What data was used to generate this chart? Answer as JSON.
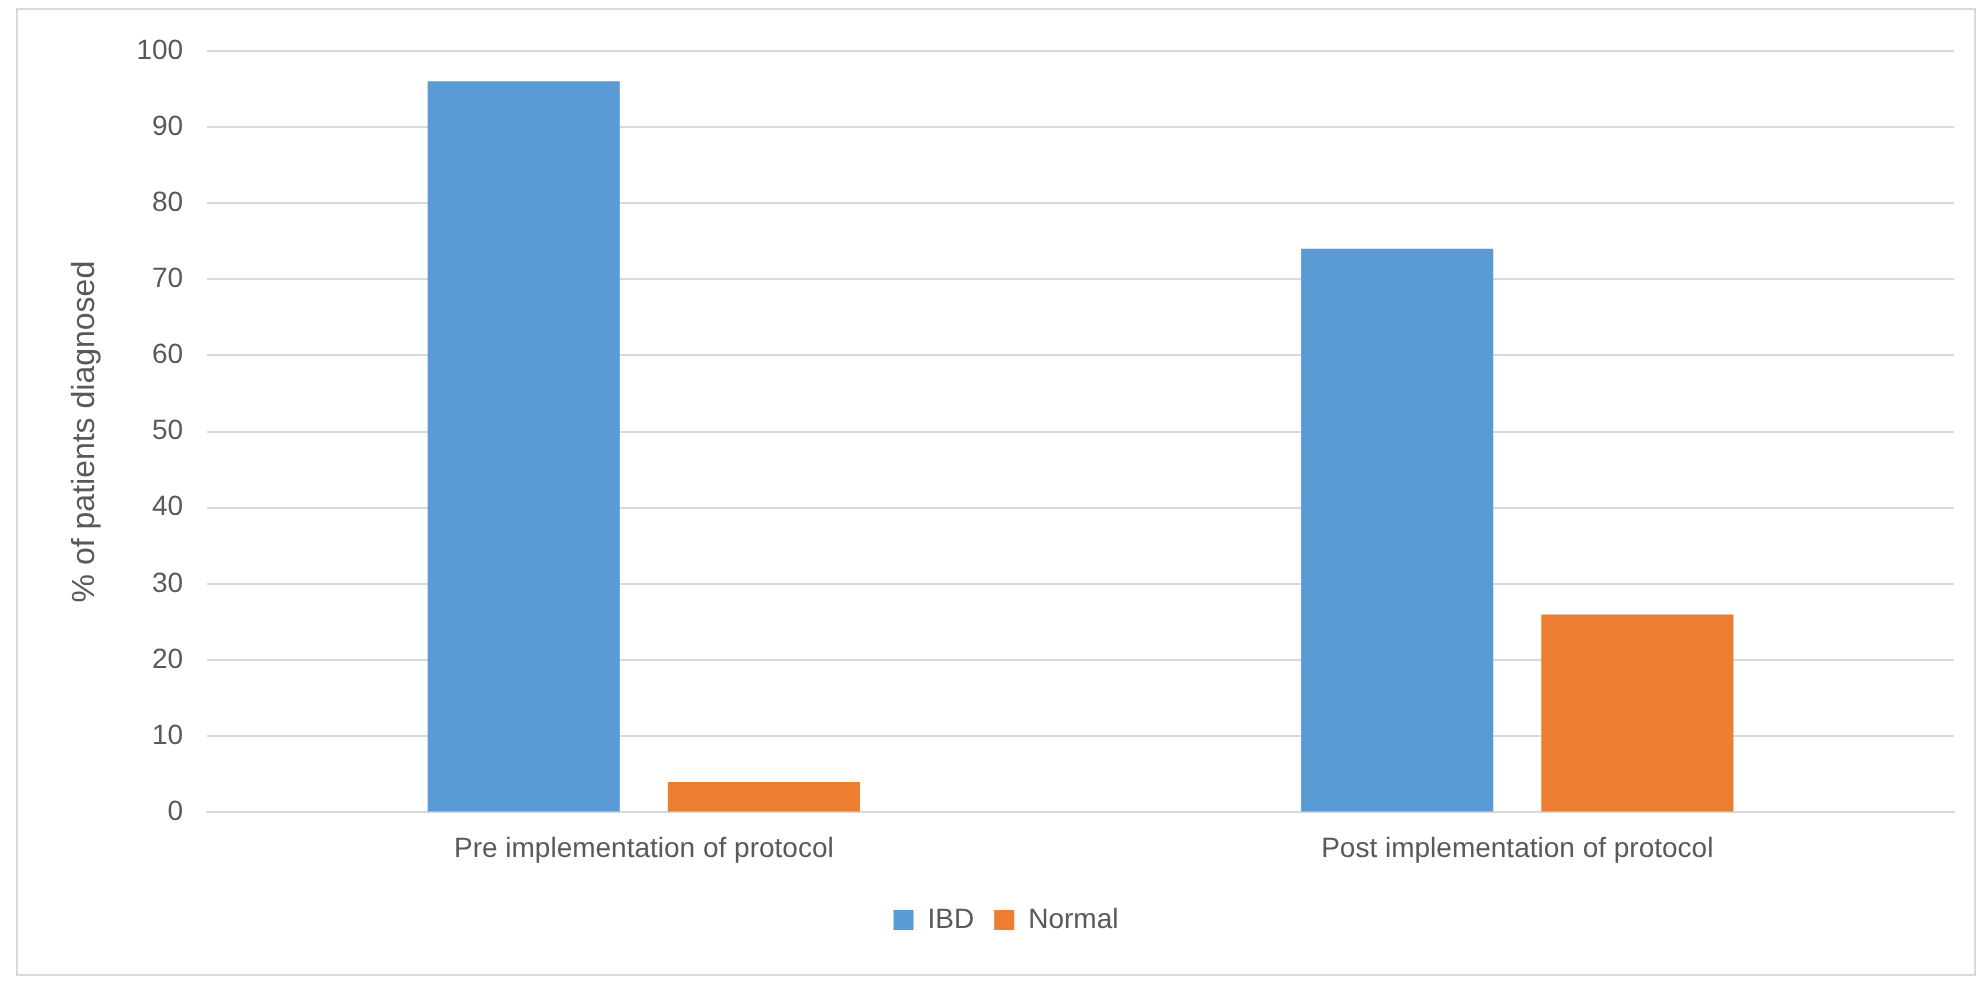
{
  "chart_data": {
    "type": "bar",
    "categories": [
      "Pre implementation of protocol",
      "Post implementation of protocol"
    ],
    "series": [
      {
        "name": "IBD",
        "color": "#5b9bd5",
        "values": [
          96,
          74
        ]
      },
      {
        "name": "Normal",
        "color": "#ed7d31",
        "values": [
          4,
          26
        ]
      }
    ],
    "ylabel": "% of patients diagnosed",
    "ylim": [
      0,
      100
    ],
    "yticks": [
      0,
      10,
      20,
      30,
      40,
      50,
      60,
      70,
      80,
      90,
      100
    ],
    "grid": "y",
    "legend": "bottom"
  }
}
